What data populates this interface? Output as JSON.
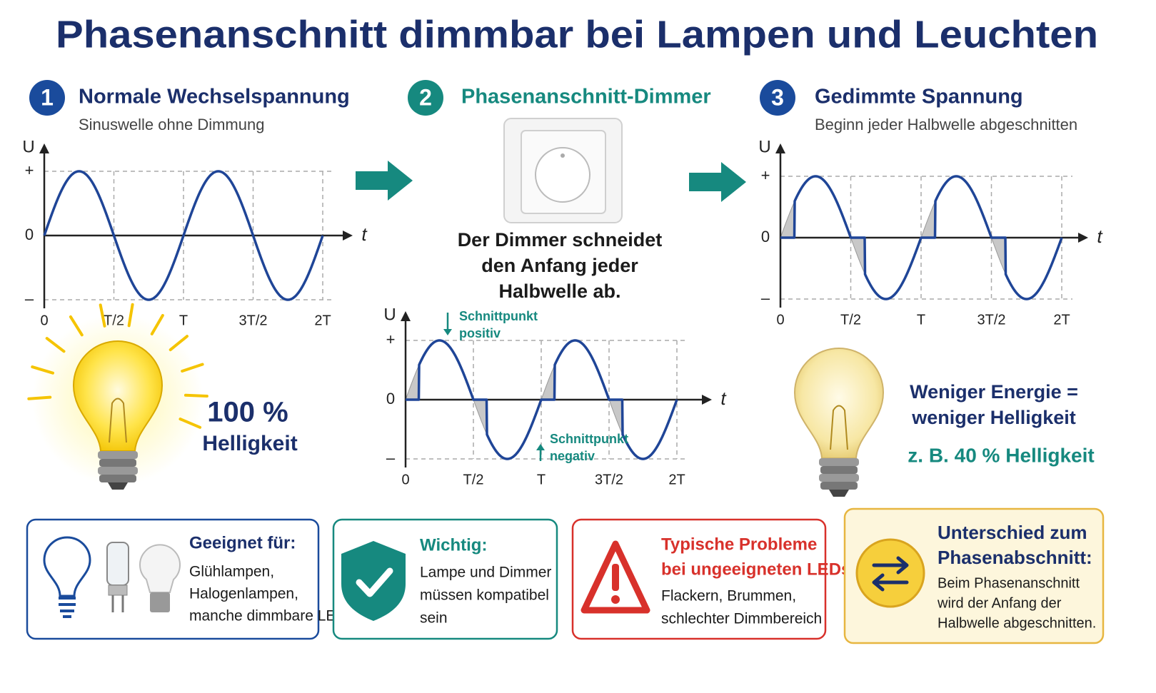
{
  "title": "Phasenanschnitt dimmbar bei Lampen und Leuchten",
  "steps": [
    {
      "number": "1",
      "title": "Normale Wechselspannung",
      "subtitle": "Sinuswelle ohne Dimmung"
    },
    {
      "number": "2",
      "title": "Phasenanschnitt-Dimmer",
      "caption": [
        "Der Dimmer schneidet",
        "den Anfang jeder",
        "Halbwelle ab."
      ]
    },
    {
      "number": "3",
      "title": "Gedimmte Spannung",
      "subtitle": "Beginn jeder Halbwelle abgeschnitten"
    }
  ],
  "graphs": [
    {
      "y_label": "U",
      "x_label": "t",
      "y_ticks": [
        "+",
        "0",
        "–"
      ],
      "x_ticks": [
        "0",
        "T/2",
        "T",
        "3T/2",
        "2T"
      ]
    },
    {
      "y_label": "U",
      "x_label": "t",
      "y_ticks": [
        "+",
        "0",
        "–"
      ],
      "x_ticks": [
        "0",
        "T/2",
        "T",
        "3T/2",
        "2T"
      ],
      "annotations": [
        [
          "Schnittpunkt",
          "positiv"
        ],
        [
          "Schnittpunkt",
          "negativ"
        ]
      ]
    },
    {
      "y_label": "U",
      "x_label": "t",
      "y_ticks": [
        "+",
        "0",
        "–"
      ],
      "x_ticks": [
        "0",
        "T/2",
        "T",
        "3T/2",
        "2T"
      ]
    }
  ],
  "brightness_full": {
    "value": "100 %",
    "label": "Helligkeit"
  },
  "brightness_dimmed": {
    "lines": [
      "Weniger Energie =",
      "weniger Helligkeit"
    ],
    "example": "z. B. 40 % Helligkeit"
  },
  "cards": [
    {
      "title": [
        "Geeignet für:"
      ],
      "lines": [
        "Glühlampen,",
        "Halogenlampen,",
        "manche dimmbare LEDs"
      ]
    },
    {
      "title": [
        "Wichtig:"
      ],
      "lines": [
        "Lampe und Dimmer",
        "müssen kompatibel",
        "sein"
      ]
    },
    {
      "title": [
        "Typische Probleme",
        "bei ungeeigneten LEDs:"
      ],
      "lines": [
        "Flackern, Brummen,",
        "schlechter Dimmbereich"
      ]
    },
    {
      "title": [
        "Unterschied zum",
        "Phasenabschnitt:"
      ],
      "lines": [
        "Beim Phasenanschnitt",
        "wird der Anfang der",
        "Halbwelle abgeschnitten."
      ]
    }
  ]
}
